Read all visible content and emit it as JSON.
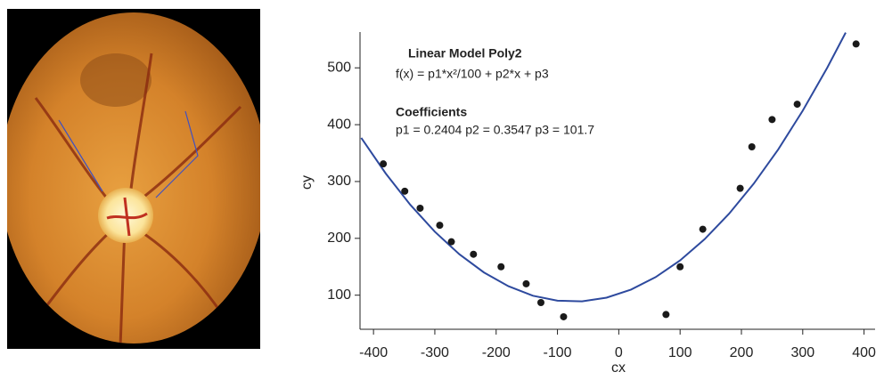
{
  "chart_data": {
    "type": "scatter",
    "annotations": [
      "Linear Model Poly2",
      "f(x) = p1*x²/100 + p2*x + p3",
      "Coefficients",
      "p1 = 0.2404 p2 = 0.3547 p3 = 101.7"
    ],
    "x_label": "cx",
    "y_label": "cy",
    "points": {
      "color": "#1a1a1a",
      "x": [
        -384,
        -349,
        -324,
        -292,
        -273,
        -237,
        -192,
        -151,
        -127,
        -90,
        77,
        100,
        137,
        198,
        217,
        250,
        291,
        387
      ],
      "y": [
        331,
        283,
        253,
        223,
        194,
        172,
        150,
        120,
        87,
        62,
        66,
        150,
        216,
        288,
        361,
        409,
        436,
        542
      ]
    },
    "fit": {
      "color": "#2e4a9e",
      "x": [
        -420,
        -380,
        -340,
        -300,
        -260,
        -220,
        -180,
        -140,
        -100,
        -60,
        -20,
        20,
        60,
        100,
        140,
        180,
        220,
        260,
        300,
        340,
        370
      ],
      "y": [
        376.8,
        314.0,
        259.0,
        211.7,
        172.0,
        140.1,
        115.8,
        99.1,
        90.2,
        89.1,
        95.6,
        109.8,
        131.7,
        161.2,
        198.5,
        243.4,
        296.1,
        356.4,
        424.5,
        500.2,
        562.0
      ]
    },
    "xlim": [
      -422,
      418
    ],
    "ylim": [
      40,
      563
    ],
    "xticks": [
      -400,
      -300,
      -200,
      -100,
      0,
      100,
      200,
      300,
      400
    ],
    "yticks": [
      100,
      200,
      300,
      400,
      500
    ]
  }
}
